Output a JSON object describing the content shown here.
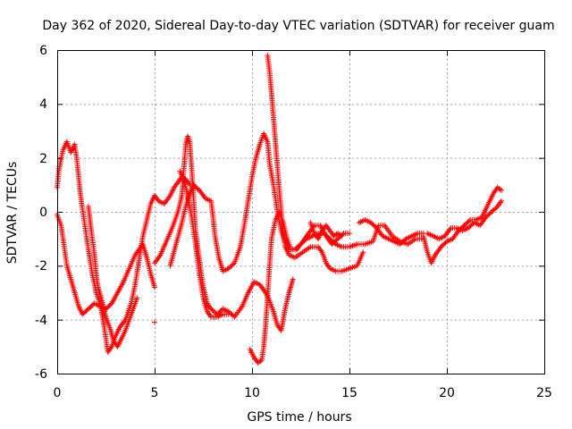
{
  "chart_data": {
    "type": "scatter",
    "title": "Day 362 of 2020, Sidereal Day-to-day VTEC variation (SDTVAR) for receiver guam",
    "xlabel": "GPS time / hours",
    "ylabel": "SDTVAR / TECUs",
    "xlim": [
      0,
      25
    ],
    "ylim": [
      -6,
      6
    ],
    "xticks": [
      0,
      5,
      10,
      15,
      20,
      25
    ],
    "yticks": [
      -6,
      -4,
      -2,
      0,
      2,
      4,
      6
    ],
    "grid": true,
    "marker": "plus",
    "color": "#ff0000",
    "series": [
      {
        "name": "trace-1",
        "points": [
          [
            0.0,
            0.9
          ],
          [
            0.1,
            1.6
          ],
          [
            0.3,
            2.3
          ],
          [
            0.5,
            2.6
          ],
          [
            0.7,
            2.2
          ],
          [
            0.9,
            2.5
          ],
          [
            1.0,
            2.0
          ],
          [
            1.2,
            0.6
          ],
          [
            1.4,
            -0.4
          ],
          [
            1.6,
            -1.4
          ],
          [
            1.8,
            -2.3
          ],
          [
            2.0,
            -3.0
          ],
          [
            2.2,
            -3.4
          ],
          [
            2.4,
            -4.2
          ],
          [
            2.6,
            -5.2
          ],
          [
            2.8,
            -5.0
          ],
          [
            3.0,
            -4.6
          ],
          [
            3.2,
            -4.3
          ],
          [
            3.5,
            -4.0
          ],
          [
            3.8,
            -3.4
          ],
          [
            4.0,
            -2.7
          ],
          [
            4.2,
            -1.8
          ],
          [
            4.4,
            -0.9
          ],
          [
            4.6,
            -0.3
          ],
          [
            4.8,
            0.3
          ],
          [
            5.0,
            0.6
          ],
          [
            5.2,
            0.4
          ],
          [
            5.5,
            0.3
          ],
          [
            5.8,
            0.6
          ],
          [
            6.0,
            0.9
          ],
          [
            6.2,
            1.1
          ],
          [
            6.4,
            1.3
          ],
          [
            6.6,
            1.2
          ],
          [
            6.8,
            1.0
          ]
        ]
      },
      {
        "name": "trace-2",
        "points": [
          [
            0.0,
            -0.1
          ],
          [
            0.1,
            -0.3
          ],
          [
            0.2,
            -0.5
          ],
          [
            0.3,
            -1.0
          ],
          [
            0.5,
            -2.0
          ],
          [
            0.7,
            -2.5
          ],
          [
            0.9,
            -3.0
          ],
          [
            1.1,
            -3.5
          ],
          [
            1.3,
            -3.8
          ],
          [
            1.6,
            -3.6
          ],
          [
            1.9,
            -3.4
          ],
          [
            2.2,
            -3.5
          ],
          [
            2.5,
            -3.6
          ],
          [
            2.8,
            -3.4
          ],
          [
            3.1,
            -3.0
          ],
          [
            3.4,
            -2.6
          ],
          [
            3.7,
            -2.1
          ],
          [
            4.0,
            -1.6
          ],
          [
            4.2,
            -1.4
          ],
          [
            4.4,
            -1.2
          ],
          [
            4.6,
            -1.7
          ],
          [
            4.8,
            -2.3
          ],
          [
            5.0,
            -2.8
          ]
        ]
      },
      {
        "name": "trace-3",
        "points": [
          [
            1.6,
            0.2
          ],
          [
            1.7,
            -0.4
          ],
          [
            1.8,
            -1.0
          ],
          [
            1.9,
            -1.5
          ],
          [
            2.0,
            -2.3
          ],
          [
            2.1,
            -2.8
          ],
          [
            2.3,
            -3.3
          ],
          [
            2.5,
            -3.9
          ],
          [
            2.7,
            -4.3
          ],
          [
            2.9,
            -4.8
          ],
          [
            3.1,
            -5.0
          ],
          [
            3.3,
            -4.7
          ],
          [
            3.5,
            -4.4
          ],
          [
            3.7,
            -4.0
          ],
          [
            3.9,
            -3.6
          ],
          [
            4.1,
            -3.2
          ]
        ]
      },
      {
        "name": "trace-4",
        "points": [
          [
            5.0,
            -1.9
          ],
          [
            5.3,
            -1.6
          ],
          [
            5.6,
            -1.1
          ],
          [
            5.9,
            -0.6
          ],
          [
            6.2,
            0.0
          ],
          [
            6.4,
            0.6
          ],
          [
            6.5,
            1.6
          ],
          [
            6.6,
            2.5
          ],
          [
            6.7,
            2.8
          ],
          [
            6.8,
            2.6
          ],
          [
            6.9,
            1.6
          ],
          [
            7.0,
            0.5
          ],
          [
            7.1,
            -0.7
          ],
          [
            7.3,
            -1.8
          ],
          [
            7.5,
            -2.8
          ],
          [
            7.7,
            -3.4
          ],
          [
            7.9,
            -3.6
          ],
          [
            8.2,
            -3.8
          ],
          [
            8.5,
            -3.6
          ],
          [
            8.8,
            -3.7
          ],
          [
            9.1,
            -3.9
          ],
          [
            9.5,
            -3.5
          ],
          [
            9.8,
            -3.0
          ],
          [
            10.1,
            -2.6
          ],
          [
            10.4,
            -2.7
          ],
          [
            10.7,
            -3.0
          ],
          [
            10.9,
            -3.3
          ],
          [
            11.1,
            -3.7
          ],
          [
            11.3,
            -4.2
          ],
          [
            11.5,
            -4.4
          ],
          [
            11.7,
            -3.6
          ],
          [
            11.9,
            -3.0
          ],
          [
            12.1,
            -2.5
          ]
        ]
      },
      {
        "name": "trace-5",
        "points": [
          [
            5.0,
            -4.1
          ]
        ]
      },
      {
        "name": "trace-6",
        "points": [
          [
            5.8,
            -2.0
          ],
          [
            6.1,
            -1.2
          ],
          [
            6.4,
            -0.4
          ],
          [
            6.7,
            0.5
          ],
          [
            7.0,
            1.0
          ],
          [
            7.3,
            0.8
          ],
          [
            7.6,
            0.5
          ],
          [
            7.9,
            0.4
          ],
          [
            8.0,
            -0.2
          ],
          [
            8.1,
            -0.9
          ],
          [
            8.3,
            -1.7
          ],
          [
            8.5,
            -2.2
          ],
          [
            8.8,
            -2.1
          ],
          [
            9.1,
            -1.9
          ],
          [
            9.4,
            -1.3
          ],
          [
            9.6,
            -0.5
          ],
          [
            9.8,
            0.4
          ],
          [
            10.0,
            1.3
          ],
          [
            10.2,
            2.0
          ],
          [
            10.4,
            2.5
          ],
          [
            10.6,
            2.9
          ],
          [
            10.8,
            2.6
          ],
          [
            10.9,
            1.8
          ],
          [
            11.1,
            1.0
          ],
          [
            11.3,
            0.0
          ],
          [
            11.5,
            -0.7
          ],
          [
            11.7,
            -1.1
          ],
          [
            11.9,
            -1.4
          ],
          [
            12.2,
            -1.4
          ],
          [
            12.5,
            -1.2
          ],
          [
            12.8,
            -1.0
          ],
          [
            13.1,
            -0.9
          ],
          [
            13.4,
            -0.8
          ],
          [
            13.7,
            -0.8
          ],
          [
            14.0,
            -1.0
          ],
          [
            14.3,
            -1.2
          ],
          [
            14.6,
            -1.3
          ],
          [
            15.0,
            -1.3
          ],
          [
            15.4,
            -1.2
          ],
          [
            15.8,
            -1.2
          ],
          [
            16.2,
            -1.1
          ],
          [
            16.5,
            -0.5
          ],
          [
            16.8,
            -0.5
          ],
          [
            17.2,
            -0.9
          ],
          [
            17.6,
            -1.1
          ],
          [
            18.0,
            -1.2
          ],
          [
            18.4,
            -1.0
          ],
          [
            18.7,
            -1.0
          ]
        ]
      },
      {
        "name": "trace-7",
        "points": [
          [
            6.3,
            1.5
          ],
          [
            6.5,
            1.2
          ],
          [
            6.7,
            0.6
          ],
          [
            6.9,
            -0.2
          ],
          [
            7.1,
            -1.2
          ],
          [
            7.3,
            -2.3
          ],
          [
            7.5,
            -3.2
          ],
          [
            7.7,
            -3.7
          ],
          [
            7.9,
            -3.9
          ],
          [
            8.2,
            -3.9
          ],
          [
            8.5,
            -3.8
          ],
          [
            8.8,
            -3.8
          ]
        ]
      },
      {
        "name": "trace-8",
        "points": [
          [
            9.9,
            -5.1
          ],
          [
            10.1,
            -5.4
          ],
          [
            10.3,
            -5.6
          ],
          [
            10.5,
            -5.5
          ],
          [
            10.6,
            -5.0
          ],
          [
            10.7,
            -4.2
          ],
          [
            10.8,
            -3.1
          ],
          [
            10.9,
            -2.0
          ],
          [
            11.0,
            -1.0
          ],
          [
            11.2,
            -0.3
          ],
          [
            11.4,
            0.0
          ],
          [
            11.6,
            -0.4
          ],
          [
            11.8,
            -1.0
          ],
          [
            12.0,
            -1.4
          ],
          [
            12.3,
            -1.4
          ],
          [
            12.6,
            -1.1
          ],
          [
            12.9,
            -0.8
          ],
          [
            13.2,
            -0.5
          ],
          [
            13.5,
            -0.5
          ],
          [
            13.8,
            -0.9
          ],
          [
            14.1,
            -1.2
          ],
          [
            14.4,
            -1.0
          ],
          [
            14.7,
            -0.8
          ],
          [
            15.0,
            -0.8
          ]
        ]
      },
      {
        "name": "trace-9",
        "points": [
          [
            10.8,
            5.8
          ],
          [
            10.9,
            5.2
          ],
          [
            11.0,
            4.4
          ],
          [
            11.1,
            3.5
          ],
          [
            11.2,
            2.6
          ],
          [
            11.3,
            1.7
          ],
          [
            11.4,
            0.8
          ],
          [
            11.5,
            0.0
          ],
          [
            11.6,
            -0.8
          ],
          [
            11.7,
            -1.3
          ],
          [
            11.9,
            -1.6
          ],
          [
            12.2,
            -1.7
          ],
          [
            12.6,
            -1.5
          ],
          [
            13.0,
            -1.3
          ],
          [
            13.4,
            -1.3
          ],
          [
            13.6,
            -1.5
          ],
          [
            13.8,
            -1.9
          ],
          [
            14.0,
            -2.1
          ],
          [
            14.3,
            -2.2
          ],
          [
            14.6,
            -2.2
          ],
          [
            15.0,
            -2.1
          ],
          [
            15.4,
            -2.0
          ],
          [
            15.7,
            -1.5
          ]
        ]
      },
      {
        "name": "trace-10",
        "points": [
          [
            13.0,
            -0.4
          ],
          [
            13.2,
            -0.8
          ],
          [
            13.4,
            -1.0
          ],
          [
            13.6,
            -0.7
          ],
          [
            13.8,
            -0.5
          ],
          [
            14.0,
            -0.7
          ],
          [
            14.2,
            -0.9
          ],
          [
            14.4,
            -0.8
          ],
          [
            14.6,
            -0.9
          ]
        ]
      },
      {
        "name": "trace-11",
        "points": [
          [
            15.5,
            -0.4
          ],
          [
            15.8,
            -0.3
          ],
          [
            16.1,
            -0.4
          ],
          [
            16.4,
            -0.6
          ],
          [
            16.7,
            -0.9
          ],
          [
            17.0,
            -1.0
          ],
          [
            17.3,
            -1.1
          ],
          [
            17.6,
            -1.2
          ],
          [
            17.9,
            -1.0
          ],
          [
            18.2,
            -0.9
          ],
          [
            18.5,
            -0.8
          ],
          [
            18.8,
            -0.8
          ]
        ]
      },
      {
        "name": "trace-12",
        "points": [
          [
            18.8,
            -0.9
          ],
          [
            19.0,
            -1.5
          ],
          [
            19.2,
            -1.9
          ],
          [
            19.4,
            -1.6
          ],
          [
            19.7,
            -1.3
          ],
          [
            20.0,
            -1.1
          ],
          [
            20.3,
            -1.0
          ],
          [
            20.6,
            -0.7
          ],
          [
            20.9,
            -0.5
          ],
          [
            21.2,
            -0.3
          ],
          [
            21.5,
            -0.3
          ],
          [
            21.8,
            -0.2
          ],
          [
            22.0,
            0.1
          ],
          [
            22.2,
            0.4
          ],
          [
            22.4,
            0.7
          ],
          [
            22.6,
            0.9
          ],
          [
            22.8,
            0.8
          ]
        ]
      },
      {
        "name": "trace-13",
        "points": [
          [
            19.0,
            -0.8
          ],
          [
            19.3,
            -0.9
          ],
          [
            19.6,
            -1.0
          ],
          [
            19.9,
            -0.9
          ],
          [
            20.2,
            -0.6
          ],
          [
            20.5,
            -0.6
          ],
          [
            20.8,
            -0.7
          ],
          [
            21.1,
            -0.6
          ],
          [
            21.4,
            -0.4
          ],
          [
            21.7,
            -0.5
          ],
          [
            22.0,
            -0.2
          ],
          [
            22.3,
            0.0
          ],
          [
            22.6,
            0.2
          ],
          [
            22.8,
            0.4
          ]
        ]
      }
    ]
  }
}
